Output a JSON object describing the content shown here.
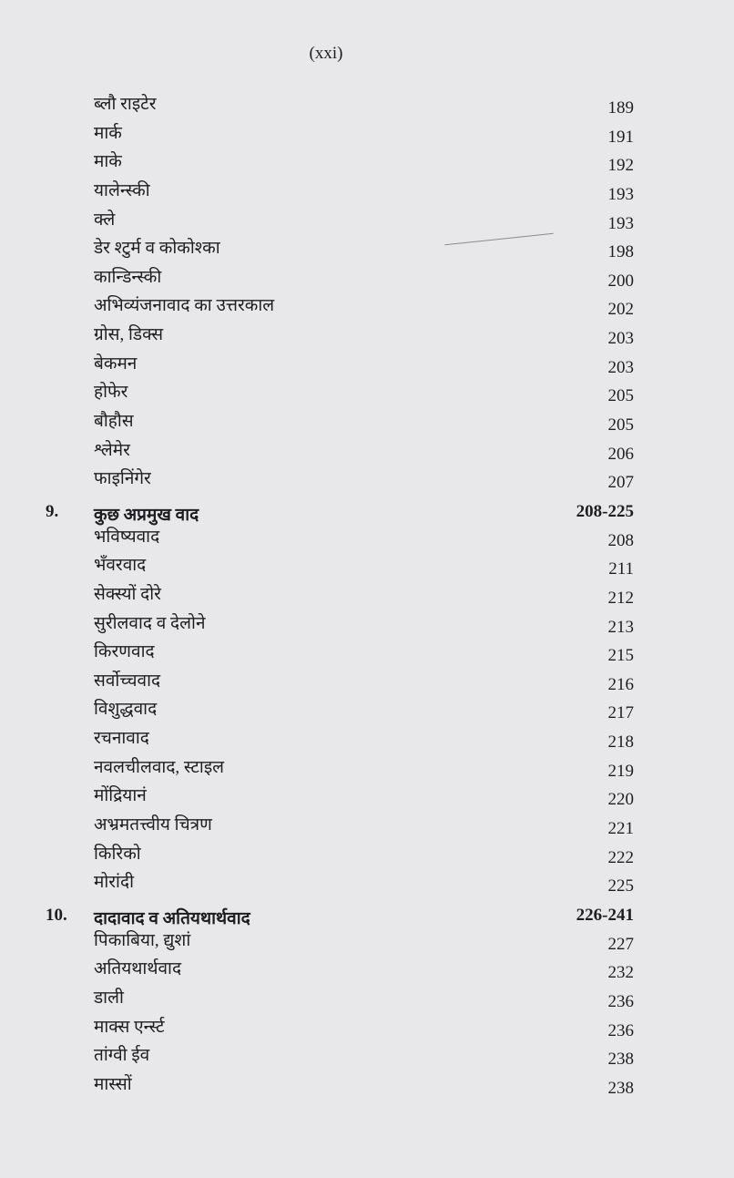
{
  "page_label": "(xxi)",
  "entries": [
    {
      "num": "",
      "title": "ब्लौ राइटेर",
      "page": "189"
    },
    {
      "num": "",
      "title": "मार्क",
      "page": "191"
    },
    {
      "num": "",
      "title": "माके",
      "page": "192"
    },
    {
      "num": "",
      "title": "यालेन्स्की",
      "page": "193"
    },
    {
      "num": "",
      "title": "क्ले",
      "page": "193"
    },
    {
      "num": "",
      "title": "डेर श्टुर्म व कोकोश्का",
      "page": "198"
    },
    {
      "num": "",
      "title": "कान्डिन्स्की",
      "page": "200"
    },
    {
      "num": "",
      "title": "अभिव्यंजनावाद का उत्तरकाल",
      "page": "202"
    },
    {
      "num": "",
      "title": "ग्रोस, डिक्स",
      "page": "203"
    },
    {
      "num": "",
      "title": "बेकमन",
      "page": "203"
    },
    {
      "num": "",
      "title": "होफेर",
      "page": "205"
    },
    {
      "num": "",
      "title": "बौहौस",
      "page": "205"
    },
    {
      "num": "",
      "title": "श्लेमेर",
      "page": "206"
    },
    {
      "num": "",
      "title": "फाइनिंगेर",
      "page": "207"
    },
    {
      "num": "9.",
      "title": "कुछ अप्रमुख वाद",
      "page": "208-225",
      "heading": true
    },
    {
      "num": "",
      "title": "भविष्यवाद",
      "page": "208"
    },
    {
      "num": "",
      "title": "भँवरवाद",
      "page": "211"
    },
    {
      "num": "",
      "title": "सेक्स्यों दोरे",
      "page": "212"
    },
    {
      "num": "",
      "title": "सुरीलवाद व देलोने",
      "page": "213"
    },
    {
      "num": "",
      "title": "किरणवाद",
      "page": "215"
    },
    {
      "num": "",
      "title": "सर्वोच्चवाद",
      "page": "216"
    },
    {
      "num": "",
      "title": "विशुद्धवाद",
      "page": "217"
    },
    {
      "num": "",
      "title": "रचनावाद",
      "page": "218"
    },
    {
      "num": "",
      "title": "नवलचीलवाद, स्टाइल",
      "page": "219"
    },
    {
      "num": "",
      "title": "मोंद्रियानं",
      "page": "220"
    },
    {
      "num": "",
      "title": "अभ्रमतत्त्वीय चित्रण",
      "page": "221"
    },
    {
      "num": "",
      "title": "किरिको",
      "page": "222"
    },
    {
      "num": "",
      "title": "मोरांदी",
      "page": "225"
    },
    {
      "num": "10.",
      "title": "दादावाद व अतियथार्थवाद",
      "page": "226-241",
      "heading": true
    },
    {
      "num": "",
      "title": "पिकाबिया, द्युशां",
      "page": "227"
    },
    {
      "num": "",
      "title": "अतियथार्थवाद",
      "page": "232"
    },
    {
      "num": "",
      "title": "डाली",
      "page": "236"
    },
    {
      "num": "",
      "title": "माक्स एर्न्स्ट",
      "page": "236"
    },
    {
      "num": "",
      "title": "तांग्वी ईव",
      "page": "238"
    },
    {
      "num": "",
      "title": "मास्सों",
      "page": "238"
    }
  ]
}
